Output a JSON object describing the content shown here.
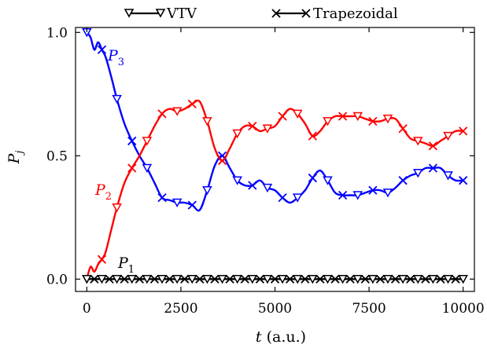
{
  "chart_data": {
    "type": "line",
    "xlabel_var": "t",
    "xlabel_unit": " (a.u.)",
    "ylabel_var": "P",
    "ylabel_sub": "j",
    "xlim": [
      -300,
      10300
    ],
    "ylim": [
      -0.05,
      1.02
    ],
    "xticks": [
      0,
      2500,
      5000,
      7500,
      10000
    ],
    "xtick_labels": [
      "0",
      "2500",
      "5000",
      "7500",
      "10000"
    ],
    "yticks": [
      0.0,
      0.5,
      1.0
    ],
    "ytick_labels": [
      "0.0",
      "0.5",
      "1.0"
    ],
    "grid": false,
    "legend": {
      "placement": "top",
      "entries": [
        {
          "label": "VTV",
          "marker": "triangle-down"
        },
        {
          "label": "Trapezoidal",
          "marker": "x"
        }
      ]
    },
    "annotations": [
      {
        "main": "P",
        "sub": "3",
        "color": "#0000ff"
      },
      {
        "main": "P",
        "sub": "2",
        "color": "#ff0000"
      },
      {
        "main": "P",
        "sub": "1",
        "color": "#000000"
      }
    ],
    "series": [
      {
        "color": "#0000ff",
        "x": [
          0,
          100,
          200,
          300,
          400,
          500,
          650,
          800,
          1000,
          1200,
          1400,
          1600,
          1800,
          2000,
          2200,
          2400,
          2600,
          2800,
          3000,
          3200,
          3400,
          3600,
          3800,
          4000,
          4200,
          4400,
          4600,
          4800,
          5000,
          5200,
          5400,
          5600,
          5800,
          6000,
          6200,
          6400,
          6600,
          6800,
          7000,
          7200,
          7400,
          7600,
          7800,
          8000,
          8200,
          8400,
          8600,
          8800,
          9000,
          9200,
          9400,
          9600,
          9800,
          10000
        ],
        "y": [
          1.0,
          0.98,
          0.93,
          0.96,
          0.93,
          0.9,
          0.82,
          0.73,
          0.63,
          0.56,
          0.5,
          0.45,
          0.39,
          0.33,
          0.32,
          0.31,
          0.31,
          0.3,
          0.28,
          0.36,
          0.46,
          0.5,
          0.45,
          0.4,
          0.38,
          0.38,
          0.4,
          0.37,
          0.36,
          0.33,
          0.31,
          0.33,
          0.36,
          0.41,
          0.44,
          0.4,
          0.35,
          0.34,
          0.34,
          0.34,
          0.35,
          0.36,
          0.36,
          0.35,
          0.37,
          0.4,
          0.42,
          0.43,
          0.45,
          0.45,
          0.45,
          0.42,
          0.4,
          0.4
        ]
      },
      {
        "color": "#ff0000",
        "x": [
          0,
          100,
          200,
          300,
          400,
          500,
          650,
          800,
          1000,
          1200,
          1400,
          1600,
          1800,
          2000,
          2200,
          2400,
          2600,
          2800,
          3000,
          3200,
          3400,
          3600,
          3800,
          4000,
          4200,
          4400,
          4600,
          4800,
          5000,
          5200,
          5400,
          5600,
          5800,
          6000,
          6200,
          6400,
          6600,
          6800,
          7000,
          7200,
          7400,
          7600,
          7800,
          8000,
          8200,
          8400,
          8600,
          8800,
          9000,
          9200,
          9400,
          9600,
          9800,
          10000
        ],
        "y": [
          0.0,
          0.05,
          0.03,
          0.06,
          0.08,
          0.11,
          0.2,
          0.29,
          0.39,
          0.45,
          0.5,
          0.56,
          0.62,
          0.67,
          0.69,
          0.68,
          0.69,
          0.71,
          0.72,
          0.64,
          0.53,
          0.48,
          0.53,
          0.59,
          0.62,
          0.62,
          0.6,
          0.61,
          0.62,
          0.66,
          0.69,
          0.67,
          0.63,
          0.58,
          0.6,
          0.64,
          0.66,
          0.66,
          0.66,
          0.66,
          0.65,
          0.64,
          0.64,
          0.65,
          0.65,
          0.61,
          0.57,
          0.56,
          0.55,
          0.54,
          0.56,
          0.58,
          0.6,
          0.6
        ]
      },
      {
        "color": "#000000",
        "x": [
          0,
          10000
        ],
        "y": [
          0.0,
          0.0
        ]
      }
    ]
  }
}
